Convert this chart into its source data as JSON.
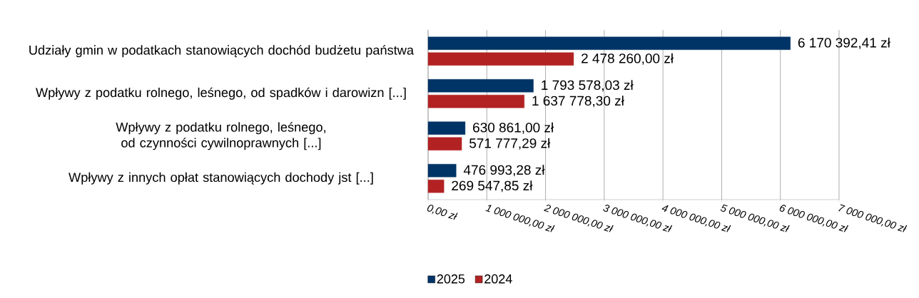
{
  "chart_data": {
    "type": "bar",
    "orientation": "horizontal",
    "categories": [
      "Udziały gmin w podatkach stanowiących dochód budżetu państwa",
      "Wpływy z podatku rolnego, leśnego, od spadków i darowizn [...]",
      "Wpływy z podatku rolnego, leśnego, od czynności cywilnoprawnych [...]",
      "Wpływy z innych opłat stanowiących dochody jst [...]"
    ],
    "series": [
      {
        "name": "2025",
        "color": "#003366",
        "values": [
          6170392.41,
          1793578.03,
          630861.0,
          476993.28
        ],
        "value_labels": [
          "6 170 392,41 zł",
          "1 793 578,03 zł",
          "630 861,00 zł",
          "476 993,28 zł"
        ]
      },
      {
        "name": "2024",
        "color": "#b22222",
        "values": [
          2478260.0,
          1637778.3,
          571777.29,
          269547.85
        ],
        "value_labels": [
          "2 478 260,00 zł",
          "1 637 778,30 zł",
          "571 777,29 zł",
          "269 547,85 zł"
        ]
      }
    ],
    "xlim": [
      0,
      7000000
    ],
    "xticks": [
      {
        "value": 0,
        "label": "0,00 zł"
      },
      {
        "value": 1000000,
        "label": "1 000 000,00 zł"
      },
      {
        "value": 2000000,
        "label": "2 000 000,00 zł"
      },
      {
        "value": 3000000,
        "label": "3 000 000,00 zł"
      },
      {
        "value": 4000000,
        "label": "4 000 000,00 zł"
      },
      {
        "value": 5000000,
        "label": "5 000 000,00 zł"
      },
      {
        "value": 6000000,
        "label": "6 000 000,00 zł"
      },
      {
        "value": 7000000,
        "label": "7 000 000,00 zł"
      }
    ],
    "grid": "x",
    "legend": "bottom"
  }
}
